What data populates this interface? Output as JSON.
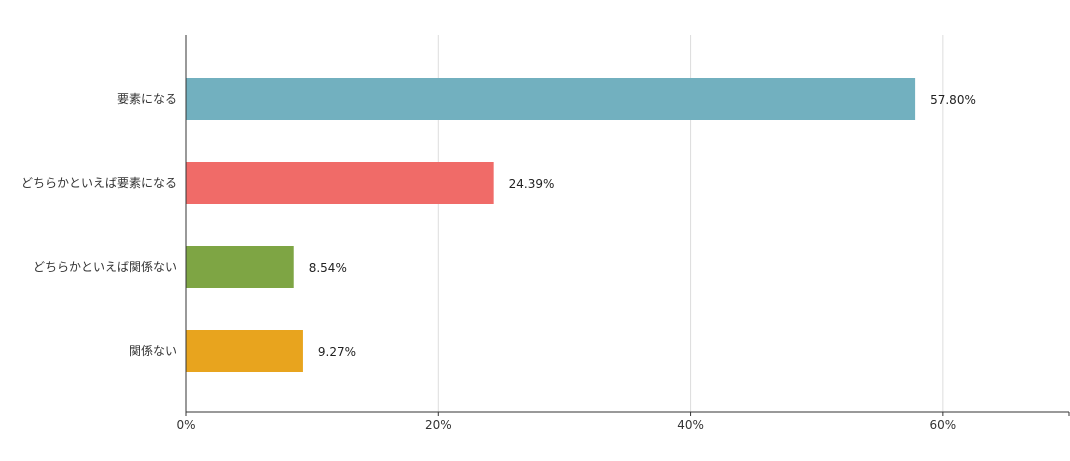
{
  "chart_data": {
    "type": "bar",
    "orientation": "horizontal",
    "categories": [
      "要素になる",
      "どちらかといえば要素になる",
      "どちらかといえば関係ない",
      "関係ない"
    ],
    "values": [
      57.8,
      24.39,
      8.54,
      9.27
    ],
    "value_labels": [
      "57.80%",
      "24.39%",
      "8.54%",
      "9.27%"
    ],
    "colors": [
      "#72b0bf",
      "#f06b68",
      "#7ea544",
      "#e8a41e"
    ],
    "xlim": [
      0,
      70
    ],
    "xticks": [
      0,
      20,
      40,
      60
    ],
    "xtick_labels": [
      "0%",
      "20%",
      "40%",
      "60%"
    ],
    "grid": true,
    "legend": false
  }
}
